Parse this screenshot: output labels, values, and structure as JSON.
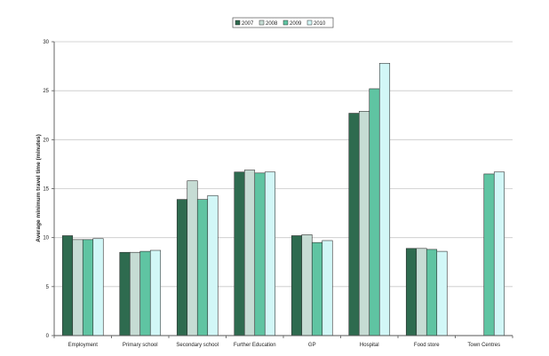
{
  "chart_data": {
    "type": "bar",
    "title": "",
    "xlabel": "",
    "ylabel": "Average minimum travel time (minutes)",
    "ylim": [
      0,
      30
    ],
    "yticks": [
      0,
      5,
      10,
      15,
      20,
      25,
      30
    ],
    "grid": true,
    "legend_position": "top",
    "categories": [
      "Employment",
      "Primary school",
      "Secondary school",
      "Further Education",
      "GP",
      "Hospital",
      "Food store",
      "Town Centres"
    ],
    "series": [
      {
        "name": "2007",
        "color": "#2e6b4f",
        "values": [
          10.2,
          8.5,
          13.9,
          16.7,
          10.2,
          22.7,
          8.9,
          null
        ]
      },
      {
        "name": "2008",
        "color": "#c6dcd4",
        "values": [
          9.8,
          8.5,
          15.8,
          16.9,
          10.3,
          22.9,
          8.9,
          null
        ]
      },
      {
        "name": "2009",
        "color": "#5fc4a2",
        "values": [
          9.8,
          8.6,
          13.9,
          16.6,
          9.5,
          25.2,
          8.8,
          16.5
        ]
      },
      {
        "name": "2010",
        "color": "#d2f7f7",
        "values": [
          9.9,
          8.7,
          14.3,
          16.7,
          9.7,
          27.8,
          8.6,
          16.7
        ]
      }
    ]
  }
}
